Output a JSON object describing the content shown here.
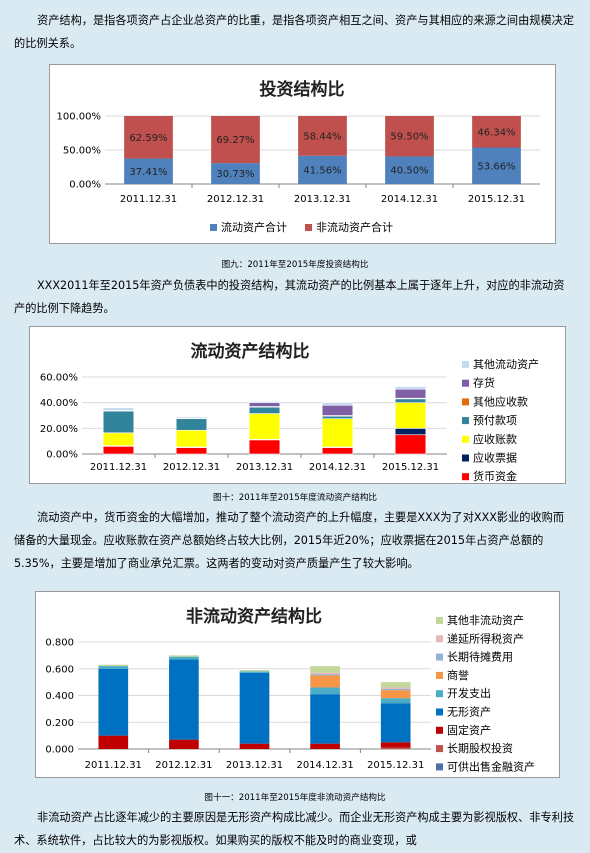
{
  "para1": "资产结构，是指各项资产占企业总资产的比重，是指各项资产相互之间、资产与其相应的来源之间由规模决定的比例关系。",
  "para2": "XXX2011年至2015年资产负债表中的投资结构，其流动资产的比例基本上属于逐年上升，对应的非流动资产的比例下降趋势。",
  "para3": "流动资产中，货币资金的大幅增加，推动了整个流动资产的上升幅度，主要是XXX为了对XXX影业的收购而储备的大量现金。应收账款在资产总额始终占较大比例，2015年近20%；应收票据在2015年占资产总额的5.35%，主要是增加了商业承兑汇票。这两者的变动对资产质量产生了较大影响。",
  "para4": "非流动资产占比逐年减少的主要原因是无形资产构成比减少。而企业无形资产构成主要为影视版权、非专利技术、系统软件，占比较大的为影视版权。如果购买的版权不能及时的商业变现，或",
  "captions": {
    "fig9": "图九：2011年至2015年度投资结构比",
    "fig10": "图十：2011年至2015年度流动资产结构比",
    "fig11": "图十一：2011年至2015年度非流动资产结构比"
  },
  "chart_data": [
    {
      "type": "bar",
      "stacked": true,
      "title": "投资结构比",
      "categories": [
        "2011.12.31",
        "2012.12.31",
        "2013.12.31",
        "2014.12.31",
        "2015.12.31"
      ],
      "series": [
        {
          "name": "流动资产合计",
          "color": "#4f81bd",
          "values": [
            37.41,
            30.73,
            41.56,
            40.5,
            53.66
          ],
          "labels": [
            "37.41%",
            "30.73%",
            "41.56%",
            "40.50%",
            "53.66%"
          ]
        },
        {
          "name": "非流动资产合计",
          "color": "#c0504d",
          "values": [
            62.59,
            69.27,
            58.44,
            59.5,
            46.34
          ],
          "labels": [
            "62.59%",
            "69.27%",
            "58.44%",
            "59.50%",
            "46.34%"
          ]
        }
      ],
      "yticks": [
        "0.00%",
        "50.00%",
        "100.00%"
      ],
      "ylim": [
        0,
        100
      ],
      "legend": "bottom"
    },
    {
      "type": "bar",
      "stacked": true,
      "title": "流动资产结构比",
      "categories": [
        "2011.12.31",
        "2012.12.31",
        "2013.12.31",
        "2014.12.31",
        "2015.12.31"
      ],
      "series": [
        {
          "name": "货币资金",
          "color": "#ff0000",
          "values": [
            6,
            5,
            11,
            5,
            15
          ]
        },
        {
          "name": "应收票据",
          "color": "#002060",
          "values": [
            0.5,
            0.5,
            0.5,
            0.5,
            5
          ]
        },
        {
          "name": "应收账款",
          "color": "#ffff00",
          "values": [
            10,
            13,
            20,
            22,
            20
          ]
        },
        {
          "name": "预付款项",
          "color": "#31849b",
          "values": [
            17,
            9,
            5,
            2,
            3
          ]
        },
        {
          "name": "其他应收款",
          "color": "#e46c0a",
          "values": [
            0.5,
            0.5,
            0.5,
            0.5,
            0.5
          ]
        },
        {
          "name": "存货",
          "color": "#7f5fa6",
          "values": [
            0,
            0,
            3,
            8,
            7
          ]
        },
        {
          "name": "其他流动资产",
          "color": "#c5d9f1",
          "values": [
            2,
            1,
            1,
            2,
            2
          ]
        }
      ],
      "yticks": [
        "0.00%",
        "20.00%",
        "40.00%",
        "60.00%"
      ],
      "ylim": [
        0,
        60
      ],
      "legend": "right"
    },
    {
      "type": "bar",
      "stacked": true,
      "title": "非流动资产结构比",
      "categories": [
        "2011.12.31",
        "2012.12.31",
        "2013.12.31",
        "2014.12.31",
        "2015.12.31"
      ],
      "series": [
        {
          "name": "可供出售金融资产",
          "color": "#4f6fa8",
          "values": [
            0,
            0,
            0,
            0,
            0
          ]
        },
        {
          "name": "长期股权投资",
          "color": "#c0504d",
          "values": [
            0,
            0,
            0,
            0,
            0.01
          ]
        },
        {
          "name": "固定资产",
          "color": "#c00000",
          "values": [
            0.1,
            0.07,
            0.04,
            0.04,
            0.04
          ]
        },
        {
          "name": "无形资产",
          "color": "#0070c0",
          "values": [
            0.5,
            0.6,
            0.53,
            0.37,
            0.29
          ]
        },
        {
          "name": "开发支出",
          "color": "#4bacc6",
          "values": [
            0.02,
            0.02,
            0.01,
            0.05,
            0.04
          ]
        },
        {
          "name": "商誉",
          "color": "#f79646",
          "values": [
            0,
            0,
            0,
            0.09,
            0.06
          ]
        },
        {
          "name": "长期待摊费用",
          "color": "#95b3d7",
          "values": [
            0,
            0,
            0,
            0.01,
            0.01
          ]
        },
        {
          "name": "递延所得税资产",
          "color": "#e6b9b8",
          "values": [
            0,
            0,
            0,
            0.01,
            0.01
          ]
        },
        {
          "name": "其他非流动资产",
          "color": "#c4d79b",
          "values": [
            0.01,
            0.01,
            0.01,
            0.05,
            0.04
          ]
        }
      ],
      "yticks": [
        "0.000",
        "0.200",
        "0.400",
        "0.600",
        "0.800"
      ],
      "ylim": [
        0,
        0.8
      ],
      "legend": "right"
    }
  ]
}
